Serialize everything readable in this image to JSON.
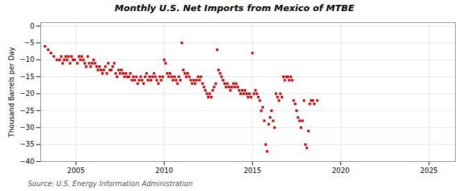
{
  "chart_data": {
    "type": "scatter",
    "title": "Monthly U.S. Net Imports from Mexico of MTBE",
    "ylabel": "Thousand Barrels per Day",
    "source": "Source: U.S. Energy Information Administration",
    "xlim": [
      2003.0,
      2026.5
    ],
    "ylim": [
      -40,
      1
    ],
    "xticks": [
      2005,
      2010,
      2015,
      2020,
      2025
    ],
    "yticks": [
      0,
      -5,
      -10,
      -15,
      -20,
      -25,
      -30,
      -35,
      -40
    ],
    "grid": true,
    "color": "#cc0000",
    "marker": "square",
    "x": [
      2003.25,
      2003.42,
      2003.58,
      2003.75,
      2003.92,
      2004.08,
      2004.17,
      2004.25,
      2004.33,
      2004.42,
      2004.5,
      2004.58,
      2004.67,
      2004.75,
      2004.83,
      2004.92,
      2005.08,
      2005.17,
      2005.25,
      2005.33,
      2005.42,
      2005.5,
      2005.58,
      2005.67,
      2005.75,
      2005.83,
      2005.92,
      2006.0,
      2006.08,
      2006.17,
      2006.25,
      2006.33,
      2006.42,
      2006.5,
      2006.58,
      2006.67,
      2006.75,
      2006.83,
      2006.92,
      2007.0,
      2007.08,
      2007.17,
      2007.25,
      2007.33,
      2007.42,
      2007.5,
      2007.58,
      2007.67,
      2007.75,
      2007.83,
      2007.92,
      2008.0,
      2008.08,
      2008.17,
      2008.25,
      2008.33,
      2008.42,
      2008.5,
      2008.58,
      2008.67,
      2008.75,
      2008.83,
      2008.92,
      2009.0,
      2009.08,
      2009.17,
      2009.25,
      2009.33,
      2009.42,
      2009.5,
      2009.58,
      2009.67,
      2009.75,
      2009.83,
      2009.92,
      2010.0,
      2010.08,
      2010.17,
      2010.25,
      2010.33,
      2010.42,
      2010.5,
      2010.58,
      2010.67,
      2010.75,
      2010.83,
      2010.92,
      2011.0,
      2011.08,
      2011.17,
      2011.25,
      2011.33,
      2011.42,
      2011.5,
      2011.58,
      2011.67,
      2011.75,
      2011.83,
      2011.92,
      2012.0,
      2012.08,
      2012.17,
      2012.25,
      2012.33,
      2012.42,
      2012.5,
      2012.58,
      2012.67,
      2012.75,
      2012.83,
      2012.92,
      2013.0,
      2013.08,
      2013.17,
      2013.25,
      2013.33,
      2013.42,
      2013.5,
      2013.58,
      2013.67,
      2013.75,
      2013.83,
      2013.92,
      2014.0,
      2014.08,
      2014.17,
      2014.25,
      2014.33,
      2014.42,
      2014.5,
      2014.58,
      2014.67,
      2014.75,
      2014.83,
      2014.92,
      2015.0,
      2015.08,
      2015.17,
      2015.25,
      2015.33,
      2015.42,
      2015.5,
      2015.58,
      2015.67,
      2015.75,
      2015.83,
      2015.92,
      2016.0,
      2016.08,
      2016.17,
      2016.25,
      2016.33,
      2016.42,
      2016.5,
      2016.58,
      2016.67,
      2016.75,
      2016.83,
      2016.92,
      2017.0,
      2017.08,
      2017.17,
      2017.25,
      2017.33,
      2017.42,
      2017.5,
      2017.58,
      2017.67,
      2017.75,
      2017.83,
      2017.92,
      2018.0,
      2018.08,
      2018.17,
      2018.25,
      2018.33,
      2018.42,
      2018.5,
      2018.67
    ],
    "values": [
      -6,
      -7,
      -8,
      -9,
      -10,
      -10,
      -9,
      -11,
      -10,
      -9,
      -10,
      -9,
      -11,
      -9,
      -10,
      -10,
      -11,
      -9,
      -10,
      -9,
      -10,
      -11,
      -12,
      -9,
      -11,
      -12,
      -11,
      -10,
      -11,
      -12,
      -13,
      -12,
      -13,
      -14,
      -13,
      -12,
      -14,
      -11,
      -13,
      -13,
      -12,
      -11,
      -14,
      -15,
      -13,
      -14,
      -13,
      -14,
      -15,
      -14,
      -15,
      -15,
      -14,
      -16,
      -15,
      -16,
      -15,
      -17,
      -16,
      -15,
      -16,
      -17,
      -15,
      -14,
      -16,
      -15,
      -16,
      -15,
      -14,
      -15,
      -16,
      -17,
      -15,
      -16,
      -15,
      -10,
      -11,
      -14,
      -15,
      -14,
      -15,
      -16,
      -15,
      -16,
      -17,
      -15,
      -16,
      -5,
      -13,
      -14,
      -15,
      -14,
      -15,
      -16,
      -17,
      -16,
      -17,
      -16,
      -15,
      -16,
      -15,
      -17,
      -18,
      -19,
      -20,
      -21,
      -20,
      -21,
      -19,
      -18,
      -17,
      -7,
      -13,
      -14,
      -15,
      -16,
      -17,
      -18,
      -17,
      -18,
      -19,
      -18,
      -17,
      -18,
      -17,
      -18,
      -19,
      -20,
      -19,
      -20,
      -19,
      -20,
      -21,
      -20,
      -21,
      -8,
      -20,
      -19,
      -20,
      -21,
      -22,
      -25,
      -24,
      -28,
      -35,
      -37,
      -29,
      -27,
      -25,
      -28,
      -30,
      -20,
      -21,
      -22,
      -20,
      -21,
      -15,
      -16,
      -15,
      -15,
      -16,
      -15,
      -16,
      -22,
      -23,
      -25,
      -27,
      -28,
      -30,
      -28,
      -22,
      -35,
      -36,
      -31,
      -23,
      -22,
      -22,
      -23,
      -22
    ]
  }
}
